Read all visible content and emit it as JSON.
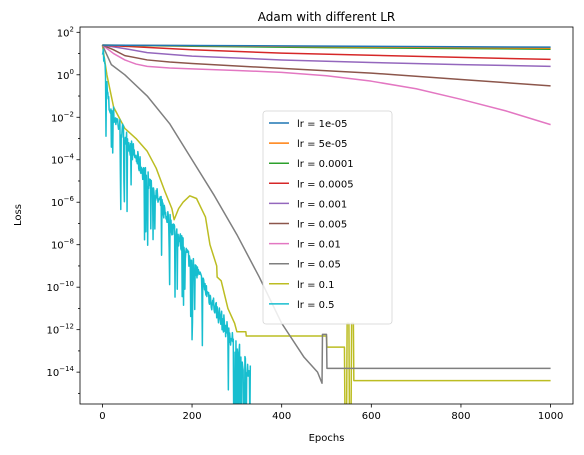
{
  "chart_data": {
    "type": "line",
    "title": "Adam with different LR",
    "xlabel": "Epochs",
    "ylabel": "Loss",
    "yscale": "log",
    "xlim": [
      -50,
      1050
    ],
    "ylim_exp": [
      -15.5,
      2.25
    ],
    "xticks": [
      0,
      200,
      400,
      600,
      800,
      1000
    ],
    "yticks": [
      {
        "base": "10",
        "exp": "2",
        "value": 100
      },
      {
        "base": "10",
        "exp": "0",
        "value": 1
      },
      {
        "base": "10",
        "exp": "−2",
        "value": 0.01
      },
      {
        "base": "10",
        "exp": "−4",
        "value": 0.0001
      },
      {
        "base": "10",
        "exp": "−6",
        "value": 1e-06
      },
      {
        "base": "10",
        "exp": "−8",
        "value": 1e-08
      },
      {
        "base": "10",
        "exp": "−10",
        "value": 1e-10
      },
      {
        "base": "10",
        "exp": "−12",
        "value": 1e-12
      },
      {
        "base": "10",
        "exp": "−14",
        "value": 1e-14
      }
    ],
    "grid": false,
    "legend_position": "center-right",
    "series": [
      {
        "name": "lr = 1e-05",
        "color": "#1f77b4",
        "x": [
          0,
          1000
        ],
        "y": [
          25,
          20
        ]
      },
      {
        "name": "lr = 5e-05",
        "color": "#ff7f0e",
        "x": [
          0,
          1000
        ],
        "y": [
          25,
          18
        ]
      },
      {
        "name": "lr = 0.0001",
        "color": "#2ca02c",
        "x": [
          0,
          200,
          500,
          1000
        ],
        "y": [
          25,
          22,
          19,
          16
        ]
      },
      {
        "name": "lr = 0.0005",
        "color": "#d62728",
        "x": [
          0,
          200,
          400,
          600,
          800,
          1000
        ],
        "y": [
          25,
          15,
          10.5,
          8.3,
          6.6,
          5.3
        ]
      },
      {
        "name": "lr = 0.001",
        "color": "#9467bd",
        "x": [
          0,
          50,
          100,
          200,
          400,
          600,
          800,
          1000
        ],
        "y": [
          25,
          17,
          11,
          7.6,
          5,
          3.8,
          3,
          2.5
        ]
      },
      {
        "name": "lr = 0.005",
        "color": "#8c564b",
        "x": [
          0,
          25,
          50,
          100,
          150,
          200,
          300,
          400,
          600,
          800,
          1000
        ],
        "y": [
          25,
          15,
          8,
          5,
          4,
          3.4,
          2.6,
          2,
          1.2,
          0.6,
          0.3
        ]
      },
      {
        "name": "lr = 0.01",
        "color": "#e377c2",
        "x": [
          0,
          25,
          50,
          75,
          100,
          150,
          200,
          300,
          400,
          500,
          600,
          700,
          800,
          900,
          1000
        ],
        "y": [
          25,
          10,
          5,
          3.2,
          2.5,
          2.1,
          1.9,
          1.6,
          1.3,
          0.9,
          0.5,
          0.22,
          0.07,
          0.02,
          0.0045
        ]
      },
      {
        "name": "lr = 0.05",
        "color": "#7f7f7f",
        "x": [
          0,
          20,
          50,
          100,
          150,
          200,
          250,
          300,
          350,
          400,
          450,
          480,
          490,
          491,
          500,
          501,
          1000
        ],
        "y": [
          25,
          3,
          1,
          0.1,
          0.005,
          0.0001,
          2e-06,
          3e-08,
          3e-10,
          2e-12,
          5e-14,
          1e-14,
          3e-15,
          6e-13,
          6e-13,
          1.5e-14,
          1.5e-14
        ]
      },
      {
        "name": "lr = 0.1",
        "color": "#bcbd22",
        "x": [
          0,
          10,
          25,
          50,
          75,
          100,
          120,
          140,
          155,
          156,
          160,
          170,
          180,
          195,
          210,
          230,
          240,
          255,
          256,
          265,
          280,
          295,
          300,
          320,
          321,
          500,
          501,
          540,
          541,
          545,
          546,
          550,
          551,
          555,
          556,
          560,
          561,
          1000
        ],
        "y": [
          25,
          1,
          0.03,
          0.003,
          0.001,
          0.00025,
          4e-05,
          3e-06,
          5e-07,
          4e-07,
          1.5e-07,
          5e-07,
          1e-06,
          2e-06,
          1.5e-06,
          2e-07,
          1e-08,
          1e-09,
          3e-10,
          2e-10,
          1e-11,
          2e-12,
          8e-13,
          8e-13,
          5e-13,
          5e-13,
          1.5e-13,
          1.5e-13,
          3e-16,
          3e-16,
          2e-12,
          2e-12,
          3e-16,
          3e-16,
          2e-12,
          2e-12,
          4e-15,
          4e-15
        ]
      }
    ]
  }
}
